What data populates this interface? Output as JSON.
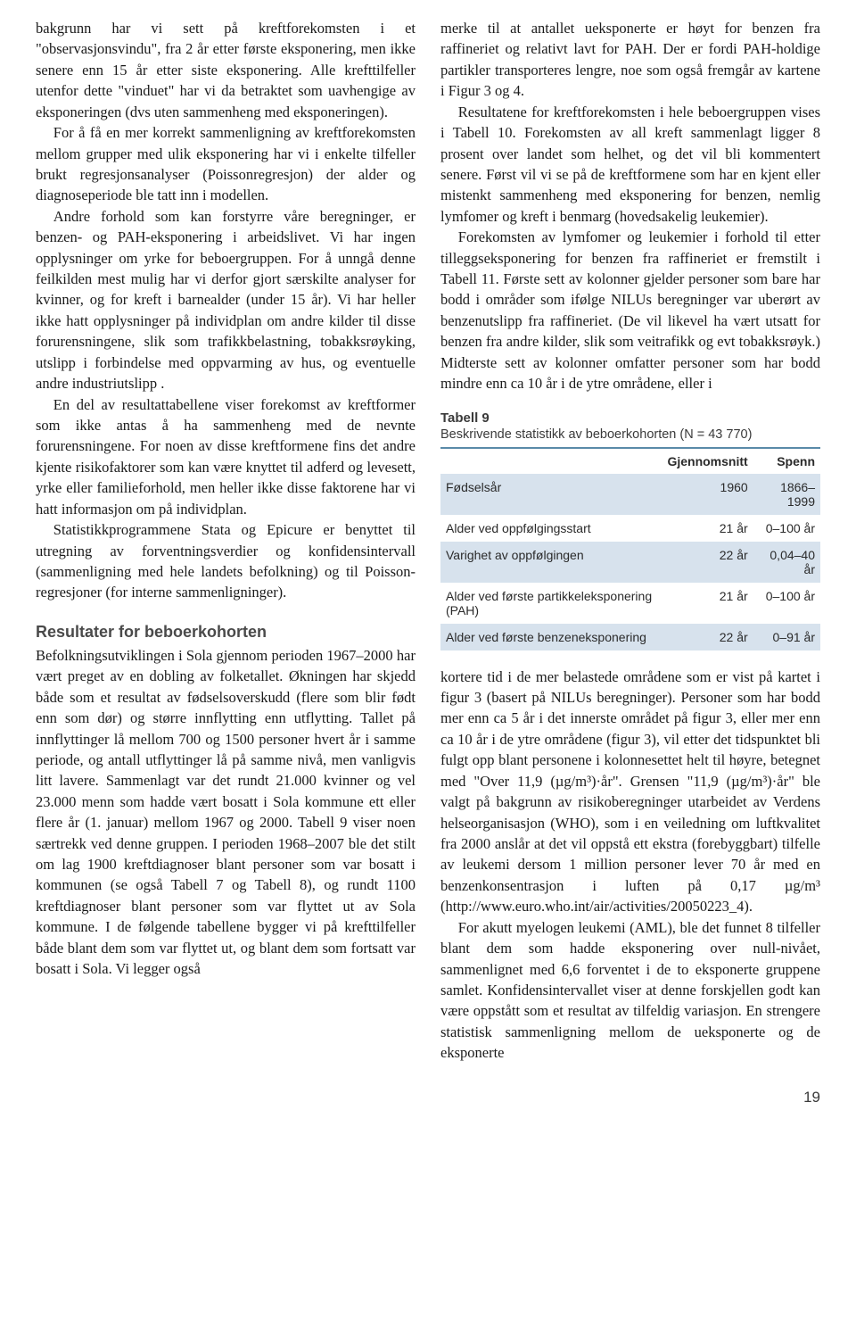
{
  "left": {
    "p1": "bakgrunn har vi sett på kreftforekomsten i et \"observasjonsvindu\", fra 2 år etter første eksponering, men ikke senere enn 15 år etter siste eksponering. Alle krefttilfeller utenfor dette \"vinduet\" har vi da betraktet som uavhengige av eksponeringen (dvs uten sammenheng med eksponeringen).",
    "p2": "For å få en mer korrekt sammenligning av kreftforekomsten mellom grupper med ulik eksponering har vi i enkelte tilfeller brukt regresjonsanalyser (Poissonregresjon) der alder og diagnoseperiode ble tatt inn i modellen.",
    "p3": "Andre forhold som kan forstyrre våre beregninger, er benzen- og PAH-eksponering i arbeidslivet. Vi har ingen opplysninger om yrke for beboergruppen. For å unngå denne feilkilden mest mulig har vi derfor gjort særskilte analyser for kvinner, og for kreft i barnealder (under 15 år). Vi har heller ikke hatt opplysninger på individplan om andre kilder til disse forurensningene, slik som trafikkbelastning, tobakksrøyking, utslipp i forbindelse med oppvarming av hus, og eventuelle andre industriutslipp .",
    "p4": "En del av resultattabellene viser forekomst av kreftformer som ikke antas å ha sammenheng med de nevnte forurensningene. For noen av disse kreftformene fins det andre kjente risikofaktorer som kan være knyttet til adferd og levesett, yrke eller familieforhold, men heller ikke disse faktorene har vi hatt informasjon om på individplan.",
    "p5": "Statistikkprogrammene Stata og Epicure er benyttet til utregning av forventningsverdier og konfidensintervall (sammenligning med hele landets befolkning) og til Poisson-regresjoner (for interne sammenligninger).",
    "heading": "Resultater for beboerkohorten",
    "p6": "Befolkningsutviklingen i Sola gjennom perioden 1967–2000 har vært preget av en dobling av folketallet. Økningen har skjedd både som et resultat av fødselsoverskudd (flere som blir født enn som dør) og større innflytting enn utflytting. Tallet på innflyttinger lå mellom 700 og 1500 personer hvert år i samme periode, og antall utflyttinger lå på samme nivå, men vanligvis litt lavere. Sammenlagt var det rundt 21.000 kvinner og vel 23.000 menn som hadde vært bosatt i Sola kommune ett eller flere år (1. januar) mellom 1967 og 2000. Tabell 9 viser noen særtrekk ved denne gruppen. I perioden 1968–2007 ble det stilt om lag 1900 kreftdiagnoser blant personer som var bosatt i kommunen (se også Tabell 7 og Tabell 8), og rundt 1100 kreftdiagnoser blant personer som var flyttet ut av Sola kommune. I de følgende tabellene bygger vi på krefttilfeller både blant dem som var flyttet ut, og blant dem som fortsatt var bosatt i Sola. Vi legger også"
  },
  "right": {
    "p1": "merke til at antallet ueksponerte er høyt for benzen fra raffineriet og relativt lavt for PAH. Der er fordi PAH-holdige partikler transporteres lengre, noe som også fremgår av kartene i Figur 3 og 4.",
    "p2": "Resultatene for kreftforekomsten i hele beboergruppen vises i Tabell 10. Forekomsten av all kreft sammenlagt ligger 8 prosent over landet som helhet, og det vil bli kommentert senere. Først vil vi se på de kreftformene som har en kjent eller mistenkt sammenheng med eksponering for benzen, nemlig lymfomer og kreft i benmarg (hovedsakelig leukemier).",
    "p3": "Forekomsten av lymfomer og leukemier i forhold til etter tilleggseksponering for benzen fra raffineriet er fremstilt i Tabell 11. Første sett av kolonner gjelder personer som bare har bodd i områder som ifølge NILUs beregninger var uberørt av benzenutslipp fra raffineriet. (De vil likevel ha vært utsatt for benzen fra andre kilder, slik som veitrafikk og evt tobakksrøyk.) Midterste sett av kolonner omfatter personer som har bodd mindre enn ca 10 år i de ytre områdene, eller i",
    "p4": "kortere tid i de mer belastede områdene som er vist på kartet i figur 3 (basert på NILUs beregninger). Personer som har bodd mer enn ca 5 år i det innerste området på figur 3, eller mer enn ca 10 år i de ytre områdene (figur 3), vil etter det tidspunktet bli fulgt opp blant personene i kolonnesettet helt til høyre, betegnet med \"Over 11,9 (µg/m³)·år\". Grensen \"11,9 (µg/m³)·år\" ble valgt på bakgrunn av risikoberegninger utarbeidet av Verdens helseorganisasjon (WHO), som i en veiledning om luftkvalitet fra 2000 anslår at det vil oppstå ett ekstra (forebyggbart) tilfelle av leukemi dersom 1 million personer lever 70 år med en benzenkonsentrasjon i luften på 0,17 µg/m³ (http://www.euro.who.int/air/activities/20050223_4).",
    "p5": "For akutt myelogen leukemi (AML), ble det funnet 8 tilfeller blant dem som hadde eksponering over null-nivået, sammenlignet med 6,6 forventet i de to eksponerte gruppene samlet. Konfidensintervallet viser at denne forskjellen godt kan være oppstått som et resultat av tilfeldig variasjon. En strengere statistisk sammenligning mellom de ueksponerte og de eksponerte"
  },
  "table9": {
    "title": "Tabell 9",
    "caption": "Beskrivende statistikk av beboerkohorten (N = 43 770)",
    "headers": [
      "",
      "Gjennomsnitt",
      "Spenn"
    ],
    "rows": [
      {
        "label": "Fødselsår",
        "mean": "1960",
        "range": "1866–1999",
        "shaded": true
      },
      {
        "label": "Alder ved oppfølgingsstart",
        "mean": "21 år",
        "range": "0–100 år",
        "shaded": false
      },
      {
        "label": "Varighet av oppfølgingen",
        "mean": "22 år",
        "range": "0,04–40 år",
        "shaded": true
      },
      {
        "label": "Alder ved første partikkeleksponering (PAH)",
        "mean": "21 år",
        "range": "0–100 år",
        "shaded": false
      },
      {
        "label": "Alder ved første benzeneksponering",
        "mean": "22 år",
        "range": "0–91 år",
        "shaded": true
      }
    ]
  },
  "pageNumber": "19"
}
